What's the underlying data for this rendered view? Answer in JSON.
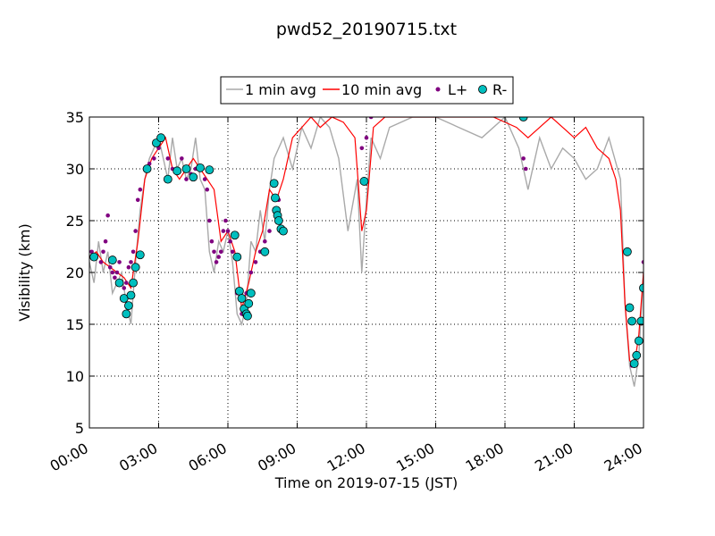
{
  "chart_data": {
    "type": "line",
    "title": "pwd52_20190715.txt",
    "xlabel": "Time on 2019-07-15 (JST)",
    "ylabel": "Visibility (km)",
    "xlim": [
      0,
      24
    ],
    "ylim": [
      5,
      35
    ],
    "x_unit": "hours",
    "xticks": [
      0,
      3,
      6,
      9,
      12,
      15,
      18,
      21,
      24
    ],
    "xtick_labels": [
      "00:00",
      "03:00",
      "06:00",
      "09:00",
      "12:00",
      "15:00",
      "18:00",
      "21:00",
      "24:00"
    ],
    "yticks": [
      5,
      10,
      15,
      20,
      25,
      30,
      35
    ],
    "ytick_labels": [
      "5",
      "10",
      "15",
      "20",
      "25",
      "30",
      "35"
    ],
    "grid": true,
    "legend_position": "top-center, outside",
    "series": [
      {
        "name": "1 min avg",
        "color": "#a9a9a9",
        "style": "line",
        "x": [
          0.0,
          0.2,
          0.4,
          0.6,
          0.8,
          1.0,
          1.2,
          1.4,
          1.6,
          1.8,
          2.0,
          2.2,
          2.4,
          2.6,
          2.8,
          3.0,
          3.2,
          3.4,
          3.6,
          3.8,
          4.0,
          4.2,
          4.4,
          4.6,
          4.8,
          5.0,
          5.2,
          5.4,
          5.6,
          5.8,
          6.0,
          6.2,
          6.4,
          6.6,
          6.8,
          7.0,
          7.2,
          7.4,
          7.6,
          7.8,
          8.0,
          8.4,
          8.8,
          9.2,
          9.6,
          10.0,
          10.4,
          10.8,
          11.2,
          11.6,
          11.8,
          12.0,
          12.2,
          12.6,
          13.0,
          14.0,
          15.0,
          16.0,
          17.0,
          18.0,
          18.6,
          19.0,
          19.5,
          20.0,
          20.5,
          21.0,
          21.5,
          22.0,
          22.5,
          23.0,
          23.2,
          23.4,
          23.6,
          23.8,
          24.0
        ],
        "values": [
          21,
          19,
          23,
          20,
          22,
          18,
          19,
          20,
          17,
          15,
          21,
          26,
          29,
          31,
          32,
          33,
          31,
          29,
          33,
          30,
          31,
          29,
          30,
          33,
          29,
          28,
          22,
          20,
          23,
          22,
          24,
          21,
          16,
          15,
          17,
          23,
          22,
          26,
          23,
          28,
          31,
          33,
          30,
          34,
          32,
          35,
          34,
          31,
          24,
          29,
          20,
          27,
          33,
          31,
          34,
          35,
          35,
          34,
          33,
          35,
          32,
          28,
          33,
          30,
          32,
          31,
          29,
          30,
          33,
          29,
          17,
          11,
          9,
          12,
          20
        ],
        "y_note": "dense noisy trace, approximated"
      },
      {
        "name": "10 min avg",
        "color": "#ff0000",
        "style": "line",
        "x": [
          0.0,
          0.3,
          0.6,
          0.9,
          1.2,
          1.5,
          1.8,
          2.1,
          2.4,
          2.7,
          3.0,
          3.3,
          3.6,
          3.9,
          4.2,
          4.5,
          4.8,
          5.1,
          5.4,
          5.7,
          6.0,
          6.3,
          6.6,
          6.9,
          7.2,
          7.5,
          7.8,
          8.1,
          8.4,
          8.8,
          9.2,
          9.6,
          10.0,
          10.5,
          11.0,
          11.5,
          11.8,
          12.0,
          12.3,
          12.8,
          13.5,
          14.5,
          15.5,
          16.5,
          17.5,
          18.5,
          19.0,
          19.5,
          20.0,
          20.5,
          21.0,
          21.5,
          22.0,
          22.5,
          22.8,
          23.0,
          23.2,
          23.4,
          23.6,
          23.8,
          24.0
        ],
        "values": [
          21.5,
          22,
          21,
          20.5,
          20,
          19.5,
          18.5,
          23,
          29,
          31,
          32,
          33,
          30,
          29,
          30,
          31,
          30,
          29,
          28,
          23,
          24,
          22,
          16.5,
          19,
          22,
          24,
          28,
          27,
          29,
          33,
          34,
          35,
          34,
          35,
          34.5,
          33,
          24,
          26,
          34,
          35,
          35,
          35,
          35,
          35,
          35,
          34,
          33,
          34,
          35,
          34,
          33,
          34,
          32,
          31,
          29,
          26,
          17,
          11.5,
          11,
          14,
          20
        ]
      },
      {
        "name": "L+",
        "color": "#800080",
        "style": "markers",
        "x": [
          0.1,
          0.3,
          0.5,
          0.6,
          0.7,
          0.8,
          0.9,
          1.0,
          1.1,
          1.2,
          1.3,
          1.4,
          1.5,
          1.6,
          1.7,
          1.8,
          1.9,
          2.0,
          2.1,
          2.2,
          2.4,
          2.6,
          2.8,
          3.0,
          3.2,
          3.4,
          3.6,
          3.8,
          4.0,
          4.2,
          4.4,
          4.6,
          4.8,
          5.0,
          5.1,
          5.2,
          5.3,
          5.4,
          5.5,
          5.6,
          5.7,
          5.8,
          5.9,
          6.0,
          6.1,
          6.2,
          6.4,
          6.5,
          6.6,
          6.8,
          7.0,
          7.2,
          7.4,
          7.6,
          7.8,
          8.0,
          8.2,
          11.8,
          12.0,
          12.2,
          18.8,
          18.9,
          23.5,
          23.7,
          24.0
        ],
        "values": [
          22,
          21.5,
          21,
          22,
          23,
          25.5,
          20.5,
          20,
          19.5,
          20,
          21,
          19,
          18.5,
          19,
          20.5,
          21,
          22,
          24,
          27,
          28,
          30,
          30.5,
          31,
          32,
          33,
          31,
          30,
          30,
          31,
          29,
          29.5,
          30,
          30,
          29,
          28,
          25,
          23,
          22,
          21,
          21.5,
          22,
          24,
          25,
          24,
          23,
          22,
          18,
          17.5,
          16,
          18,
          20,
          21,
          22,
          23,
          24,
          26,
          27,
          32,
          33,
          35,
          31,
          30,
          11,
          12,
          21
        ]
      },
      {
        "name": "R-",
        "color": "#00bfbf",
        "style": "markers",
        "x": [
          0.2,
          1.0,
          1.3,
          1.5,
          1.6,
          1.7,
          1.8,
          1.9,
          2.0,
          2.2,
          2.5,
          2.9,
          3.1,
          3.4,
          3.8,
          4.2,
          4.5,
          4.8,
          5.2,
          6.3,
          6.4,
          6.5,
          6.6,
          6.7,
          6.8,
          6.85,
          6.9,
          7.0,
          7.6,
          8.0,
          8.05,
          8.1,
          8.15,
          8.2,
          8.3,
          8.4,
          11.9,
          18.8,
          23.3,
          23.4,
          23.5,
          23.6,
          23.7,
          23.8,
          23.9,
          24.0
        ],
        "values": [
          21.5,
          21.2,
          19,
          17.5,
          16,
          16.8,
          17.8,
          19,
          20.5,
          21.7,
          30,
          32.5,
          33,
          29,
          29.8,
          30,
          29.2,
          30.1,
          29.9,
          23.6,
          21.5,
          18.2,
          17.5,
          16.5,
          16,
          15.8,
          17,
          18,
          22,
          28.6,
          27.2,
          26,
          25.5,
          25,
          24.2,
          24,
          28.8,
          35,
          22,
          16.6,
          15.3,
          11.2,
          12,
          13.4,
          15.3,
          18.5
        ]
      }
    ]
  }
}
